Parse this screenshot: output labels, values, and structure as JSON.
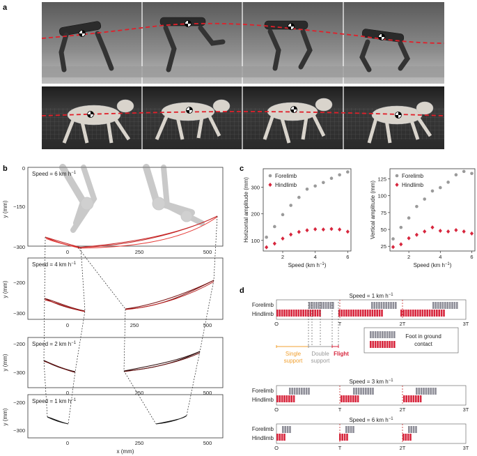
{
  "panels": {
    "a": "a",
    "b": "b",
    "c": "c",
    "d": "d"
  },
  "panel_b": {
    "y_axis_label": "y (mm)",
    "x_axis_label": "x (mm)",
    "subplots": [
      {
        "title": "Speed = 6 km h",
        "yticks": [
          "0",
          "−150",
          "−300"
        ],
        "xticks": [
          "0",
          "250",
          "500"
        ]
      },
      {
        "title": "Speed = 4 km h",
        "yticks": [
          "−200",
          "−300"
        ],
        "xticks": [
          "0",
          "250",
          "500"
        ]
      },
      {
        "title": "Speed = 2 km h",
        "yticks": [
          "−200",
          "−300"
        ],
        "xticks": [
          "0",
          "250",
          "500"
        ]
      },
      {
        "title": "Speed = 1 km h",
        "yticks": [
          "−200",
          "−300"
        ],
        "xticks": [
          "0",
          "250",
          "500"
        ]
      }
    ],
    "unit_sup": "−1"
  },
  "chart_data": [
    {
      "type": "scatter",
      "title": "",
      "xlabel": "Speed (km h",
      "xlabel_sup": "−1",
      "ylabel": "Horizontal amplitude (mm)",
      "xlim": [
        0.8,
        6.2
      ],
      "ylim": [
        60,
        370
      ],
      "xticks": [
        "2",
        "4",
        "6"
      ],
      "yticks": [
        "100",
        "200",
        "300"
      ],
      "series": [
        {
          "name": "Forelimb",
          "color": "#9a9a9a",
          "x": [
            1,
            1.5,
            2,
            2.5,
            3,
            3.5,
            4,
            4.5,
            5,
            5.5,
            6
          ],
          "y": [
            112,
            152,
            197,
            232,
            262,
            293,
            305,
            318,
            334,
            347,
            358
          ]
        },
        {
          "name": "Hindlimb",
          "color": "#d7263d",
          "x": [
            1,
            1.5,
            2,
            2.5,
            3,
            3.5,
            4,
            4.5,
            5,
            5.5,
            6
          ],
          "y": [
            74,
            88,
            107,
            122,
            132,
            138,
            142,
            141,
            143,
            141,
            133
          ]
        }
      ]
    },
    {
      "type": "scatter",
      "title": "",
      "xlabel": "Speed (km h",
      "xlabel_sup": "−1",
      "ylabel": "Vertical amplitude (mm)",
      "xlim": [
        0.8,
        6.2
      ],
      "ylim": [
        18,
        140
      ],
      "xticks": [
        "2",
        "4",
        "6"
      ],
      "yticks": [
        "25",
        "50",
        "75",
        "100",
        "125"
      ],
      "series": [
        {
          "name": "Forelimb",
          "color": "#9a9a9a",
          "x": [
            1,
            1.5,
            2,
            2.5,
            3,
            3.5,
            4,
            4.5,
            5,
            5.5,
            6
          ],
          "y": [
            36,
            53,
            67,
            84,
            95,
            107,
            112,
            120,
            131,
            136,
            133
          ]
        },
        {
          "name": "Hindlimb",
          "color": "#d7263d",
          "x": [
            1,
            1.5,
            2,
            2.5,
            3,
            3.5,
            4,
            4.5,
            5,
            5.5,
            6
          ],
          "y": [
            24,
            28,
            37,
            42,
            47,
            53,
            48,
            47,
            49,
            47,
            44
          ]
        }
      ]
    }
  ],
  "panel_d": {
    "forelimb": "Forelimb",
    "hindlimb": "Hindlimb",
    "ticks": [
      "O",
      "T",
      "2T",
      "3T"
    ],
    "speeds": [
      "Speed = 1 km h",
      "Speed = 3 km h",
      "Speed = 6 km h"
    ],
    "unit_sup": "−1",
    "legend": {
      "line1": "Foot in ground",
      "line2": "contact"
    },
    "phases": {
      "single1": "Single",
      "single2": "support",
      "double1": "Double",
      "double2": "support",
      "flight": "Flight"
    }
  }
}
